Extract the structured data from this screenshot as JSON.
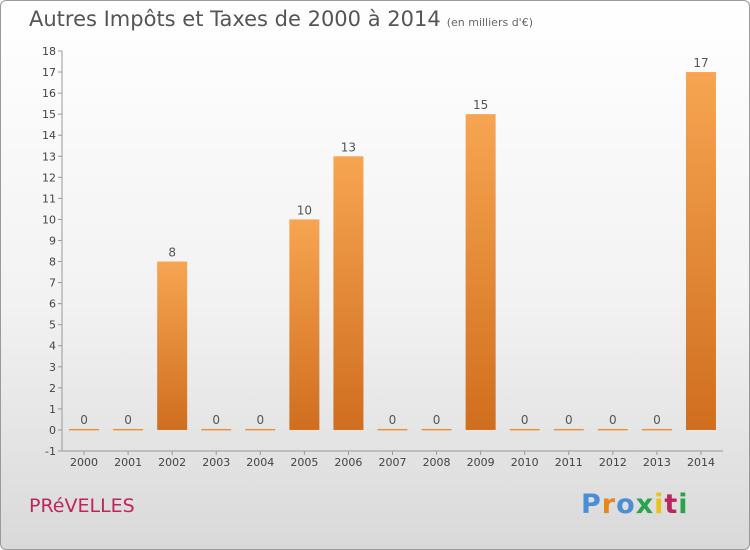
{
  "title": "Autres Impôts et Taxes de 2000 à 2014",
  "unit": "(en milliers d'€)",
  "commune": "PRéVELLES",
  "logo": {
    "letters": [
      "P",
      "r",
      "o",
      "x",
      "i",
      "t",
      "i"
    ],
    "colors": [
      "#4a8fd6",
      "#e8861a",
      "#4a8fd6",
      "#2ba24c",
      "#e8c31a",
      "#c0245c",
      "#2ba24c"
    ]
  },
  "chart_data": {
    "type": "bar",
    "categories": [
      "2000",
      "2001",
      "2002",
      "2003",
      "2004",
      "2005",
      "2006",
      "2007",
      "2008",
      "2009",
      "2010",
      "2011",
      "2012",
      "2013",
      "2014"
    ],
    "values": [
      0,
      0,
      8,
      0,
      0,
      10,
      13,
      0,
      0,
      15,
      0,
      0,
      0,
      0,
      17
    ],
    "data_labels": [
      "0",
      "0",
      "8",
      "0",
      "0",
      "10",
      "13",
      "0",
      "0",
      "15",
      "0",
      "0",
      "0",
      "0",
      "17"
    ],
    "ylim": [
      -1,
      18
    ],
    "yticks": [
      "-1",
      "0",
      "1",
      "2",
      "3",
      "4",
      "5",
      "6",
      "7",
      "8",
      "9",
      "10",
      "11",
      "12",
      "13",
      "14",
      "15",
      "16",
      "17",
      "18"
    ],
    "grid": false,
    "bar_color": "#f0923a"
  }
}
